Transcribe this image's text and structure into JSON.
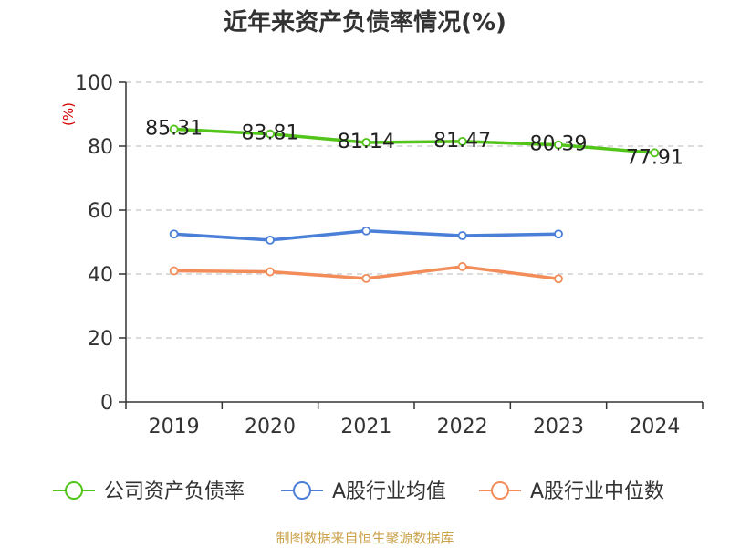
{
  "title": "近年来资产负债率情况(%)",
  "source": "制图数据来自恒生聚源数据库",
  "colors": {
    "company": "#52c41a",
    "industry_avg": "#4a7fd8",
    "industry_median": "#f28d5a",
    "unit": "#d40000",
    "source": "#c9a24a"
  },
  "chart_data": {
    "type": "line",
    "title": "近年来资产负债率情况(%)",
    "ylabel": "(%)",
    "xlabel": "",
    "categories": [
      "2019",
      "2020",
      "2021",
      "2022",
      "2023",
      "2024"
    ],
    "ylim": [
      0,
      100
    ],
    "yticks": [
      "0",
      "20",
      "40",
      "60",
      "80",
      "100"
    ],
    "grid": true,
    "legend_position": "bottom",
    "series": [
      {
        "name": "公司资产负债率",
        "values": [
          85.31,
          83.81,
          81.14,
          81.47,
          80.39,
          77.91
        ],
        "labels": [
          "85.31",
          "83.81",
          "81.14",
          "81.47",
          "80.39",
          "77.91"
        ]
      },
      {
        "name": "A股行业均值",
        "values": [
          52.5,
          50.6,
          53.5,
          52.0,
          52.5,
          null
        ]
      },
      {
        "name": "A股行业中位数",
        "values": [
          41.0,
          40.7,
          38.6,
          42.3,
          38.5,
          null
        ]
      }
    ]
  }
}
